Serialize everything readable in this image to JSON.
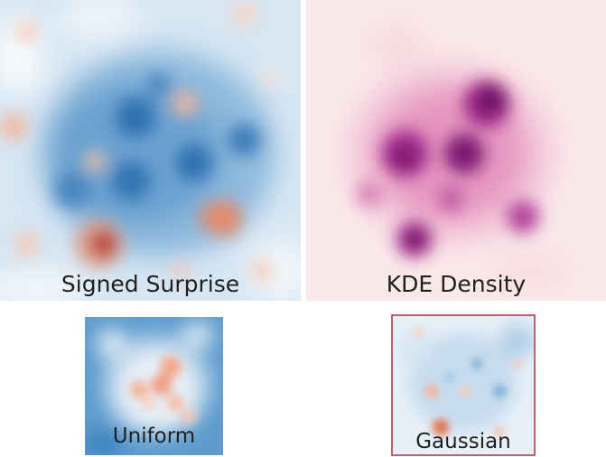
{
  "panels": {
    "signed_surprise": {
      "label": "Signed Surprise",
      "colormap": [
        "#2166ac",
        "#f7f7f7",
        "#b2182b"
      ]
    },
    "kde_density": {
      "label": "KDE Density",
      "colormap": [
        "#fbeaea",
        "#b5288e",
        "#4a0f4f"
      ]
    },
    "uniform": {
      "label": "Uniform",
      "colormap": [
        "#2f7fc0",
        "#f7f7f7",
        "#e46f55"
      ]
    },
    "gaussian": {
      "label": "Gaussian",
      "colormap": [
        "#74a9d3",
        "#f7f7f7",
        "#d6604d"
      ],
      "frame_color": "#c0606c"
    }
  }
}
